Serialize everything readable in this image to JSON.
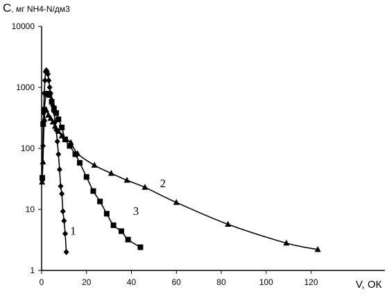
{
  "chart_data": {
    "type": "scatter",
    "y_scale": "log",
    "xlim": [
      0,
      130
    ],
    "ylim": [
      1,
      10000
    ],
    "grid": false,
    "legend": "none",
    "ylabel_main": "C",
    "ylabel_units": ", мг NH4-N/дм3",
    "xlabel": "V, ОК",
    "x_ticks": [
      0,
      20,
      40,
      60,
      80,
      100,
      120
    ],
    "x_tick_labels": [
      "0",
      "20",
      "40",
      "60",
      "80",
      "100",
      "120"
    ],
    "y_ticks": [
      1,
      10,
      100,
      1000,
      10000
    ],
    "y_tick_labels": [
      "1",
      "10",
      "100",
      "1000",
      "10000"
    ],
    "series": [
      {
        "curve_label": "1",
        "marker": "diamond",
        "points": [
          [
            0.3,
            30
          ],
          [
            0.6,
            110
          ],
          [
            0.9,
            380
          ],
          [
            1.2,
            800
          ],
          [
            1.5,
            1300
          ],
          [
            1.8,
            1800
          ],
          [
            2.1,
            1900
          ],
          [
            2.4,
            1800
          ],
          [
            2.8,
            1650
          ],
          [
            3.2,
            1300
          ],
          [
            3.6,
            1000
          ],
          [
            4.0,
            800
          ],
          [
            4.5,
            620
          ],
          [
            5.0,
            500
          ],
          [
            5.5,
            400
          ],
          [
            6.0,
            270
          ],
          [
            6.5,
            200
          ],
          [
            7.0,
            130
          ],
          [
            7.5,
            80
          ],
          [
            8.0,
            45
          ],
          [
            8.5,
            24
          ],
          [
            9.0,
            18
          ],
          [
            9.5,
            9.3
          ],
          [
            10.0,
            6.5
          ],
          [
            10.5,
            4.0
          ],
          [
            11.0,
            2.0
          ]
        ],
        "label_at": [
          14,
          4.5
        ]
      },
      {
        "curve_label": "2",
        "marker": "triangle",
        "points": [
          [
            0.2,
            28
          ],
          [
            0.6,
            60
          ],
          [
            1.2,
            300
          ],
          [
            2.0,
            430
          ],
          [
            3.0,
            350
          ],
          [
            4.0,
            310
          ],
          [
            5.0,
            270
          ],
          [
            6.0,
            230
          ],
          [
            7.5,
            190
          ],
          [
            9.0,
            160
          ],
          [
            11.0,
            140
          ],
          [
            13.0,
            125
          ],
          [
            16.0,
            82
          ],
          [
            23.5,
            53
          ],
          [
            31.0,
            39
          ],
          [
            38.0,
            30
          ],
          [
            46.0,
            23
          ],
          [
            60.0,
            13
          ],
          [
            83.0,
            5.7
          ],
          [
            109.0,
            2.8
          ],
          [
            123.0,
            2.2
          ]
        ],
        "label_at": [
          54,
          27
        ]
      },
      {
        "curve_label": "3",
        "marker": "square",
        "points": [
          [
            0.3,
            33
          ],
          [
            0.7,
            250
          ],
          [
            1.2,
            430
          ],
          [
            2.0,
            780
          ],
          [
            2.8,
            790
          ],
          [
            3.5,
            750
          ],
          [
            4.5,
            580
          ],
          [
            5.5,
            450
          ],
          [
            6.5,
            380
          ],
          [
            7.5,
            300
          ],
          [
            9.0,
            220
          ],
          [
            10.5,
            140
          ],
          [
            12.5,
            110
          ],
          [
            15.0,
            80
          ],
          [
            17.0,
            58
          ],
          [
            20.0,
            34
          ],
          [
            23.0,
            20
          ],
          [
            26.0,
            13.5
          ],
          [
            29.0,
            8.5
          ],
          [
            32.0,
            5.5
          ],
          [
            35.5,
            4.4
          ],
          [
            38.5,
            3.2
          ],
          [
            44.0,
            2.4
          ]
        ],
        "label_at": [
          42,
          9.5
        ]
      }
    ]
  }
}
